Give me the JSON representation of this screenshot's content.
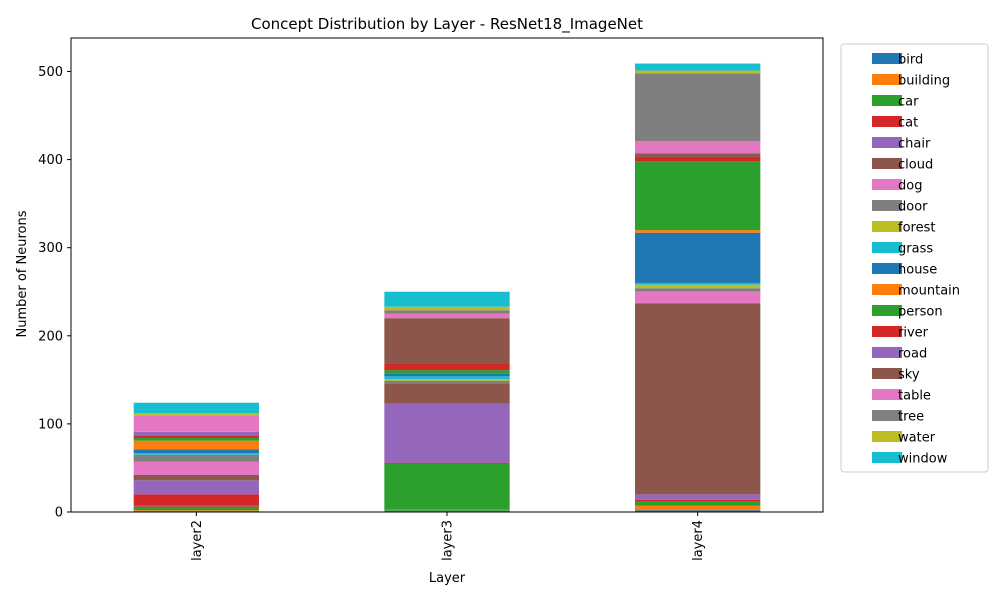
{
  "chart_data": {
    "type": "bar",
    "stacked": true,
    "title": "Concept Distribution by Layer - ResNet18_ImageNet",
    "xlabel": "Layer",
    "ylabel": "Number of Neurons",
    "categories": [
      "layer2",
      "layer3",
      "layer4"
    ],
    "ylim": [
      0,
      538
    ],
    "yticks": [
      0,
      100,
      200,
      300,
      400,
      500
    ],
    "grid": false,
    "legend_position": "outside-right",
    "series": [
      {
        "name": "bird",
        "color": "#1f77b4",
        "values": [
          1,
          1,
          2
        ]
      },
      {
        "name": "building",
        "color": "#ff7f0e",
        "values": [
          1,
          0,
          5
        ]
      },
      {
        "name": "car",
        "color": "#2ca02c",
        "values": [
          3,
          1,
          5
        ]
      },
      {
        "name": "cat",
        "color": "#d62728",
        "values": [
          1,
          0,
          2
        ]
      },
      {
        "name": "chair",
        "color": "#9467bd",
        "values": [
          0,
          0,
          6
        ]
      },
      {
        "name": "cloud",
        "color": "#8c564b",
        "values": [
          1,
          0,
          0
        ]
      },
      {
        "name": "dog",
        "color": "#e377c2",
        "values": [
          0,
          0,
          0
        ]
      },
      {
        "name": "door",
        "color": "#7f7f7f",
        "values": [
          0,
          1,
          0
        ]
      },
      {
        "name": "forest",
        "color": "#bcbd22",
        "values": [
          0,
          0,
          0
        ]
      },
      {
        "name": "grass",
        "color": "#17becf",
        "values": [
          0,
          0,
          0
        ]
      },
      {
        "name": "house",
        "color": "#1f77b4",
        "values": [
          0,
          0,
          0
        ]
      },
      {
        "name": "mountain",
        "color": "#ff7f0e",
        "values": [
          0,
          0,
          0
        ]
      },
      {
        "name": "person",
        "color": "#2ca02c",
        "values": [
          0,
          52,
          0
        ]
      },
      {
        "name": "river",
        "color": "#d62728",
        "values": [
          13,
          1,
          0
        ]
      },
      {
        "name": "road",
        "color": "#9467bd",
        "values": [
          16,
          67,
          0
        ]
      },
      {
        "name": "sky",
        "color": "#8c564b",
        "values": [
          6,
          23,
          217
        ]
      },
      {
        "name": "table",
        "color": "#e377c2",
        "values": [
          15,
          0,
          13
        ]
      },
      {
        "name": "tree",
        "color": "#7f7f7f",
        "values": [
          8,
          3,
          4
        ]
      },
      {
        "name": "water",
        "color": "#bcbd22",
        "values": [
          0,
          2,
          4
        ]
      },
      {
        "name": "window",
        "color": "#17becf",
        "values": [
          2,
          3,
          2
        ]
      },
      {
        "name": "bird",
        "color": "#1f77b4",
        "values": [
          4,
          3,
          57
        ]
      },
      {
        "name": "building",
        "color": "#ff7f0e",
        "values": [
          10,
          0,
          3
        ]
      },
      {
        "name": "car",
        "color": "#2ca02c",
        "values": [
          3,
          4,
          78
        ]
      },
      {
        "name": "cat",
        "color": "#d62728",
        "values": [
          3,
          8,
          5
        ]
      },
      {
        "name": "chair",
        "color": "#9467bd",
        "values": [
          4,
          0,
          0
        ]
      },
      {
        "name": "cloud",
        "color": "#8c564b",
        "values": [
          0,
          51,
          4
        ]
      },
      {
        "name": "dog",
        "color": "#e377c2",
        "values": [
          18,
          5,
          14
        ]
      },
      {
        "name": "door",
        "color": "#7f7f7f",
        "values": [
          0,
          4,
          77
        ]
      },
      {
        "name": "forest",
        "color": "#bcbd22",
        "values": [
          3,
          4,
          3
        ]
      },
      {
        "name": "grass",
        "color": "#17becf",
        "values": [
          12,
          17,
          8
        ]
      }
    ]
  }
}
